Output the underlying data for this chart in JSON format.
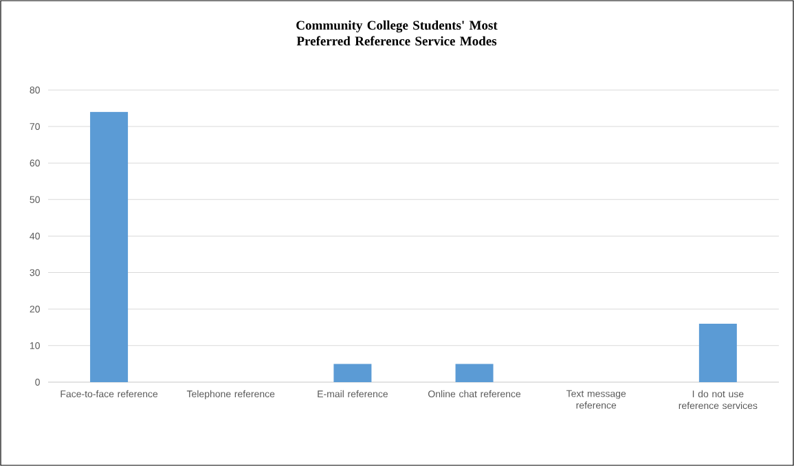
{
  "chart_data": {
    "type": "bar",
    "title": "Community College Students' Most Preferred Reference Service Modes",
    "categories": [
      "Face-to-face reference",
      "Telephone reference",
      "E-mail reference",
      "Online chat reference",
      "Text message reference",
      "I do not use reference services"
    ],
    "values": [
      74,
      0,
      5,
      5,
      0,
      16
    ],
    "color": "#5b9bd5",
    "ylim": [
      0,
      80
    ],
    "yticks": [
      0,
      10,
      20,
      30,
      40,
      50,
      60,
      70,
      80
    ],
    "grid": "y"
  }
}
